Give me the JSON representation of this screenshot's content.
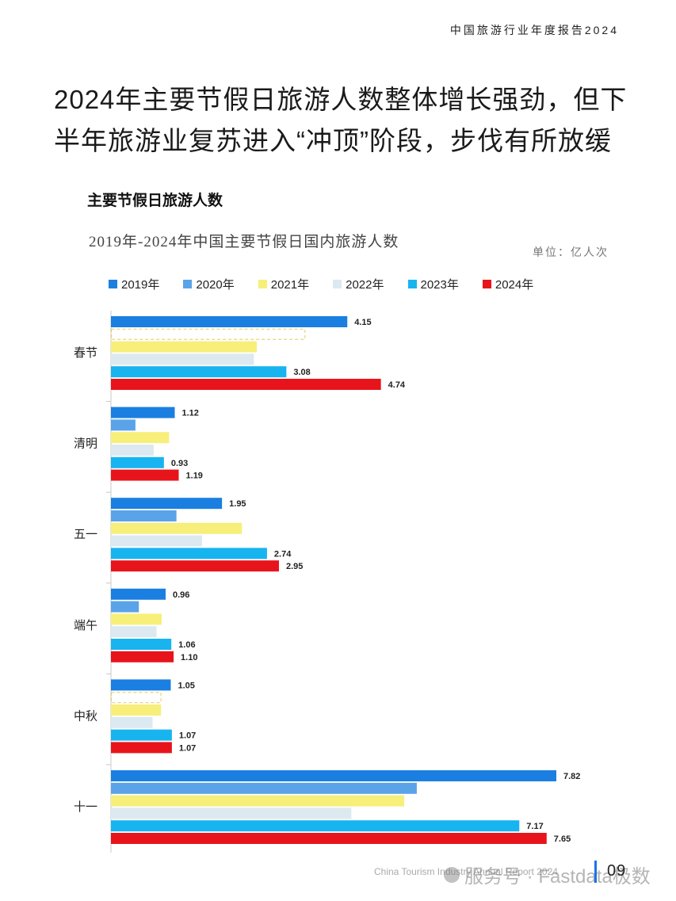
{
  "header": {
    "report_name": "中国旅游行业年度报告2024"
  },
  "headline": "2024年主要节假日旅游人数整体增长强劲，但下半年旅游业复苏进入“冲顶”阶段，步伐有所放缓",
  "section_title": "主要节假日旅游人数",
  "chart_data": {
    "type": "bar",
    "orientation": "horizontal",
    "title": "2019年-2024年中国主要节假日国内旅游人数",
    "unit": "单位：亿人次",
    "categories": [
      "春节",
      "清明",
      "五一",
      "端午",
      "中秋",
      "十一"
    ],
    "series": [
      {
        "name": "2019年",
        "color": "#1a7fe0",
        "values": [
          4.15,
          1.12,
          1.95,
          0.96,
          1.05,
          7.82
        ],
        "labeled": true
      },
      {
        "name": "2020年",
        "color": "#5ba3e8",
        "values": [
          null,
          0.43,
          1.15,
          0.49,
          null,
          5.37
        ],
        "labeled": false
      },
      {
        "name": "2021年",
        "color": "#f7ef7a",
        "values": [
          2.56,
          1.02,
          2.3,
          0.89,
          0.88,
          5.15
        ],
        "labeled": false
      },
      {
        "name": "2022年",
        "color": "#dce9f0",
        "values": [
          2.51,
          0.75,
          1.6,
          0.8,
          0.73,
          4.22
        ],
        "labeled": false
      },
      {
        "name": "2023年",
        "color": "#17b4f0",
        "values": [
          3.08,
          0.93,
          2.74,
          1.06,
          1.07,
          7.17
        ],
        "labeled": true
      },
      {
        "name": "2024年",
        "color": "#e8141c",
        "values": [
          4.74,
          1.19,
          2.95,
          1.1,
          1.07,
          7.65
        ],
        "labeled": true
      }
    ],
    "missing_markers": [
      {
        "category": "春节",
        "series": "2020年",
        "value": 3.4
      },
      {
        "category": "中秋",
        "series": "2020年",
        "value": 0.87
      }
    ],
    "xlim": [
      0,
      8.5
    ]
  },
  "footer": {
    "text": "China Tourism Industry Annual Report 2024",
    "page_number": "09",
    "watermark": "服务号 · Fastdata极数"
  }
}
